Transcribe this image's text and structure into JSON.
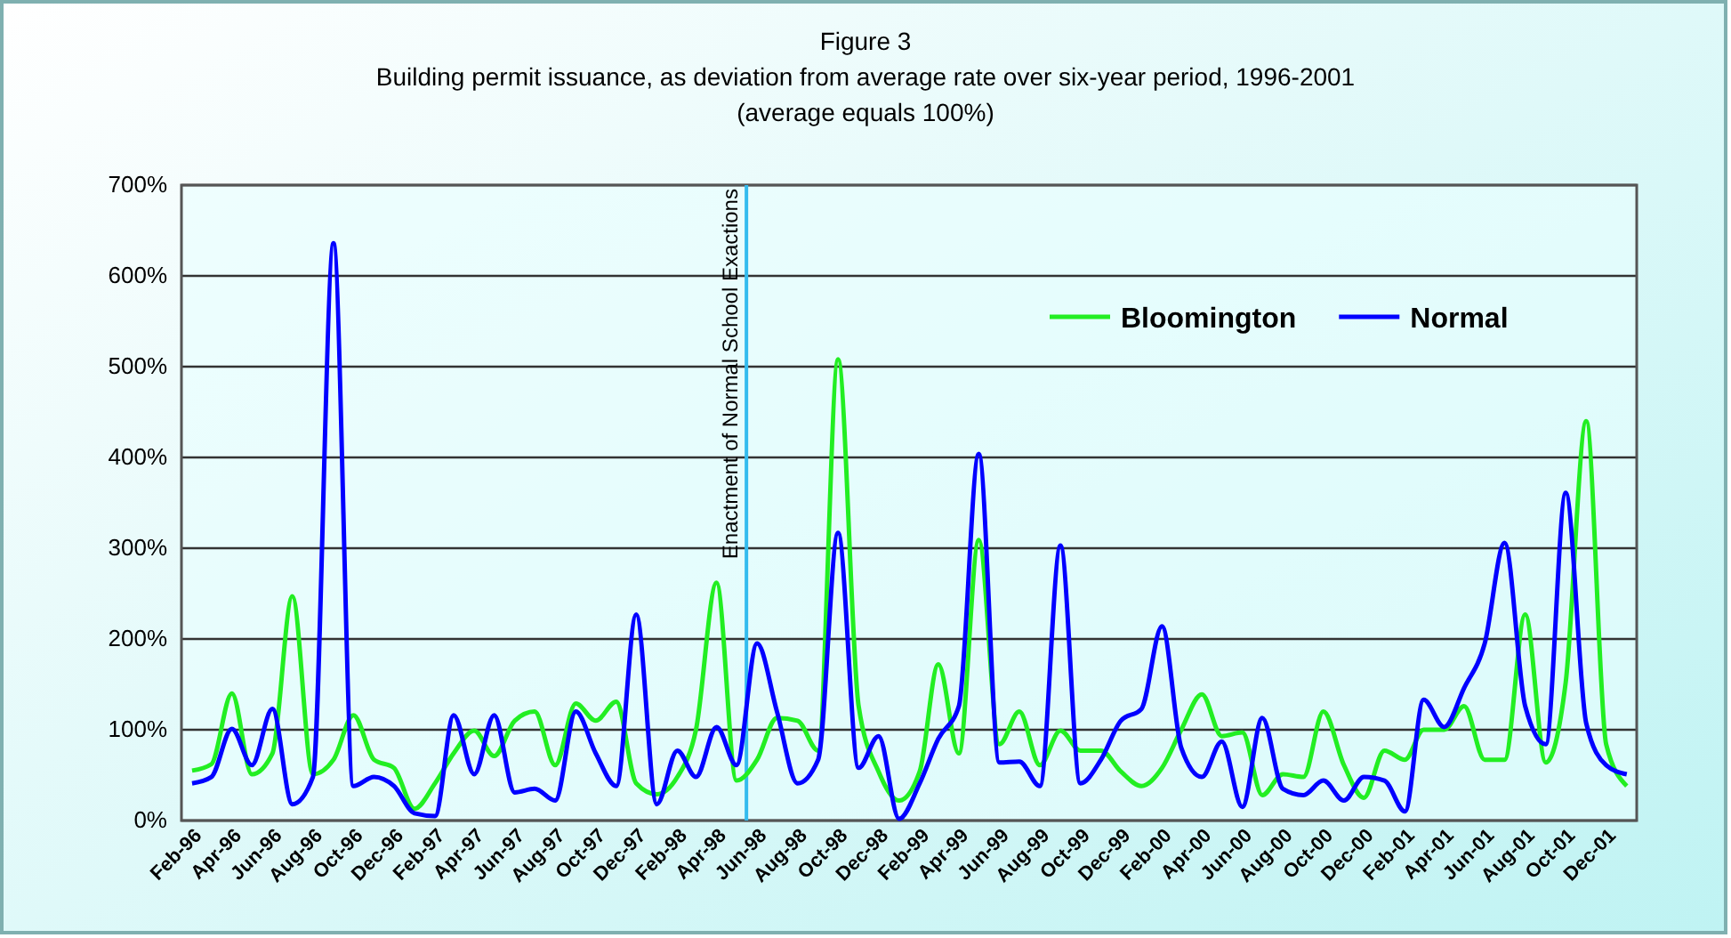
{
  "chart_data": {
    "type": "line",
    "title": "Figure 3",
    "subtitle": "Building permit issuance, as deviation from average rate over six-year period, 1996-2001\n(average equals 100%)",
    "x": [
      "1996-02",
      "1996-03",
      "1996-04",
      "1996-05",
      "1996-06",
      "1996-07",
      "1996-08",
      "1996-09",
      "1996-10",
      "1996-11",
      "1996-12",
      "1997-01",
      "1997-02",
      "1997-03",
      "1997-04",
      "1997-05",
      "1997-06",
      "1997-07",
      "1997-08",
      "1997-09",
      "1997-10",
      "1997-11",
      "1997-12",
      "1998-01",
      "1998-02",
      "1998-03",
      "1998-04",
      "1998-05",
      "1998-06",
      "1998-07",
      "1998-08",
      "1998-09",
      "1998-10",
      "1998-11",
      "1998-12",
      "1999-01",
      "1999-02",
      "1999-03",
      "1999-04",
      "1999-05",
      "1999-06",
      "1999-07",
      "1999-08",
      "1999-09",
      "1999-10",
      "1999-11",
      "1999-12",
      "2000-01",
      "2000-02",
      "2000-03",
      "2000-04",
      "2000-05",
      "2000-06",
      "2000-07",
      "2000-08",
      "2000-09",
      "2000-10",
      "2000-11",
      "2000-12",
      "2001-01",
      "2001-02",
      "2001-03",
      "2001-04",
      "2001-05",
      "2001-06",
      "2001-07",
      "2001-08",
      "2001-09",
      "2001-10",
      "2001-11",
      "2001-12",
      "2002-01"
    ],
    "series": [
      {
        "name": "Bloomington",
        "color": "#22ee22",
        "values": [
          55,
          62,
          140,
          51,
          74,
          247,
          51,
          67,
          116,
          67,
          58,
          13,
          41,
          74,
          99,
          71,
          110,
          120,
          61,
          129,
          110,
          131,
          41,
          29,
          48,
          100,
          262,
          44,
          67,
          113,
          110,
          77,
          508,
          126,
          54,
          22,
          54,
          172,
          74,
          309,
          84,
          120,
          61,
          99,
          77,
          77,
          54,
          38,
          58,
          100,
          139,
          93,
          97,
          28,
          51,
          48,
          120,
          61,
          25,
          77,
          67,
          100,
          100,
          126,
          67,
          67,
          227,
          64,
          152,
          440,
          84,
          38
        ]
      },
      {
        "name": "Normal",
        "color": "#0000ff",
        "values": [
          41,
          48,
          101,
          61,
          123,
          18,
          48,
          636,
          38,
          48,
          38,
          8,
          5,
          116,
          51,
          116,
          31,
          35,
          22,
          120,
          74,
          38,
          227,
          18,
          77,
          48,
          103,
          61,
          195,
          120,
          41,
          67,
          317,
          58,
          93,
          2,
          41,
          90,
          126,
          404,
          64,
          65,
          38,
          303,
          41,
          67,
          110,
          123,
          214,
          80,
          48,
          87,
          15,
          113,
          35,
          28,
          44,
          22,
          48,
          44,
          10,
          133,
          103,
          146,
          195,
          306,
          126,
          84,
          361,
          107,
          61,
          51
        ]
      }
    ],
    "xlim": [
      "1996-01-16",
      "2002-01-16"
    ],
    "xticks": [
      {
        "value": "1996-02",
        "label": "Feb-96"
      },
      {
        "value": "1996-04",
        "label": "Apr-96"
      },
      {
        "value": "1996-06",
        "label": "Jun-96"
      },
      {
        "value": "1996-08",
        "label": "Aug-96"
      },
      {
        "value": "1996-10",
        "label": "Oct-96"
      },
      {
        "value": "1996-12",
        "label": "Dec-96"
      },
      {
        "value": "1997-02",
        "label": "Feb-97"
      },
      {
        "value": "1997-04",
        "label": "Apr-97"
      },
      {
        "value": "1997-06",
        "label": "Jun-97"
      },
      {
        "value": "1997-08",
        "label": "Aug-97"
      },
      {
        "value": "1997-10",
        "label": "Oct-97"
      },
      {
        "value": "1997-12",
        "label": "Dec-97"
      },
      {
        "value": "1998-02",
        "label": "Feb-98"
      },
      {
        "value": "1998-04",
        "label": "Apr-98"
      },
      {
        "value": "1998-06",
        "label": "Jun-98"
      },
      {
        "value": "1998-08",
        "label": "Aug-98"
      },
      {
        "value": "1998-10",
        "label": "Oct-98"
      },
      {
        "value": "1998-12",
        "label": "Dec-98"
      },
      {
        "value": "1999-02",
        "label": "Feb-99"
      },
      {
        "value": "1999-04",
        "label": "Apr-99"
      },
      {
        "value": "1999-06",
        "label": "Jun-99"
      },
      {
        "value": "1999-08",
        "label": "Aug-99"
      },
      {
        "value": "1999-10",
        "label": "Oct-99"
      },
      {
        "value": "1999-12",
        "label": "Dec-99"
      },
      {
        "value": "2000-02",
        "label": "Feb-00"
      },
      {
        "value": "2000-04",
        "label": "Apr-00"
      },
      {
        "value": "2000-06",
        "label": "Jun-00"
      },
      {
        "value": "2000-08",
        "label": "Aug-00"
      },
      {
        "value": "2000-10",
        "label": "Oct-00"
      },
      {
        "value": "2000-12",
        "label": "Dec-00"
      },
      {
        "value": "2001-02",
        "label": "Feb-01"
      },
      {
        "value": "2001-04",
        "label": "Apr-01"
      },
      {
        "value": "2001-06",
        "label": "Jun-01"
      },
      {
        "value": "2001-08",
        "label": "Aug-01"
      },
      {
        "value": "2001-10",
        "label": "Oct-01"
      },
      {
        "value": "2001-12",
        "label": "Dec-01"
      }
    ],
    "ylim": [
      0,
      700
    ],
    "yticks": [
      {
        "value": 0,
        "label": "0%"
      },
      {
        "value": 100,
        "label": "100%"
      },
      {
        "value": 200,
        "label": "200%"
      },
      {
        "value": 300,
        "label": "300%"
      },
      {
        "value": 400,
        "label": "400%"
      },
      {
        "value": 500,
        "label": "500%"
      },
      {
        "value": 600,
        "label": "600%"
      },
      {
        "value": 700,
        "label": "700%"
      }
    ],
    "ref_lines": [
      {
        "axis": "x",
        "value": "1998-05-16",
        "label": "Enactment of Normal School Exactions",
        "color": "#33bbee"
      }
    ],
    "grid": "y",
    "legend": "top right",
    "marker": "none",
    "line_style": "solid"
  }
}
